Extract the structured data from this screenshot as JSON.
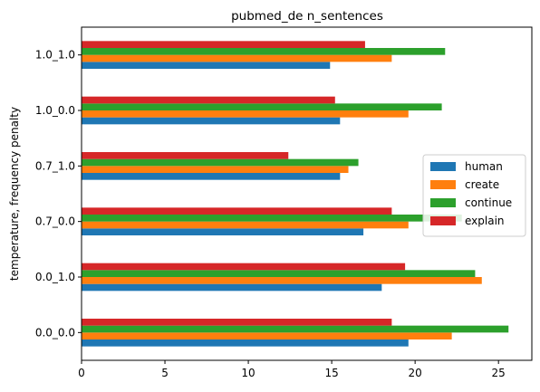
{
  "chart_data": {
    "type": "bar",
    "orientation": "horizontal",
    "title": "pubmed_de n_sentences",
    "xlabel": "",
    "ylabel": "temperature, frequency penalty",
    "categories": [
      "0.0_0.0",
      "0.0_1.0",
      "0.7_0.0",
      "0.7_1.0",
      "1.0_0.0",
      "1.0_1.0"
    ],
    "xlim": [
      0,
      27
    ],
    "xticks": [
      0,
      5,
      10,
      15,
      20,
      25
    ],
    "grid": false,
    "legend_position": "center-right",
    "series": [
      {
        "name": "human",
        "color": "#1f77b4",
        "values": [
          19.6,
          18.0,
          16.9,
          15.5,
          15.5,
          14.9
        ]
      },
      {
        "name": "create",
        "color": "#ff7f0e",
        "values": [
          22.2,
          24.0,
          19.6,
          16.0,
          19.6,
          18.6
        ]
      },
      {
        "name": "continue",
        "color": "#2ca02c",
        "values": [
          25.6,
          23.6,
          22.8,
          16.6,
          21.6,
          21.8
        ]
      },
      {
        "name": "explain",
        "color": "#d62728",
        "values": [
          18.6,
          19.4,
          18.6,
          12.4,
          15.2,
          17.0
        ]
      }
    ]
  }
}
